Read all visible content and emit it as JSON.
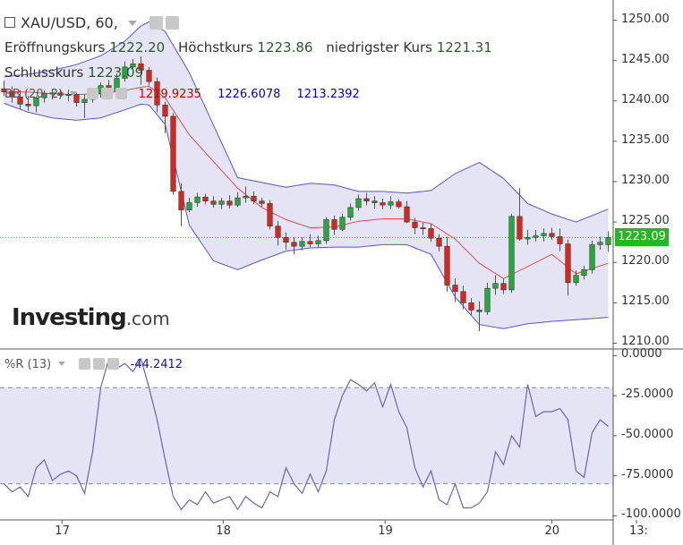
{
  "header": {
    "symbol": "XAU/USD, 60,",
    "open_label": "Eröffnungskurs",
    "open_value": "1222.20",
    "high_label": "Höchstkurs",
    "high_value": "1223.86",
    "low_label": "niedrigster Kurs",
    "low_value": "1221.31",
    "close_label": "Schlusskurs",
    "close_value": "1223.09"
  },
  "bb_legend": {
    "name": "BB (20, 2)",
    "middle": "1219.9235",
    "upper": "1226.6078",
    "lower": "1213.2392"
  },
  "wr_legend": {
    "name": "%R (13)",
    "value": "-44.2412"
  },
  "brand": {
    "name": "Investing",
    "suffix": ".com"
  },
  "price_badge": "1223.09",
  "colors": {
    "up": "#26a83a",
    "down": "#d9261c",
    "bb_band": "#5555dd",
    "bb_mid": "#e05050",
    "bb_fill": "#e4e4f4",
    "wr_line": "#6666bb",
    "price_line": "#25b525",
    "badge": "#25b525"
  },
  "chart_data": [
    {
      "type": "candlestick",
      "title": "XAU/USD, 60,",
      "ylim": [
        1209.5,
        1252.5
      ],
      "yticks": [
        "1250.00",
        "1245.00",
        "1240.00",
        "1235.00",
        "1230.00",
        "1225.00",
        "1220.00",
        "1215.00",
        "1210.00"
      ],
      "ytick_values": [
        1250,
        1245,
        1240,
        1235,
        1230,
        1225,
        1220,
        1215,
        1210
      ],
      "x_range": [
        -0.5,
        75.5
      ],
      "xticks": [
        {
          "label": "17",
          "index": 7.2
        },
        {
          "label": "18",
          "index": 27.2
        },
        {
          "label": "19",
          "index": 47.3
        },
        {
          "label": "20",
          "index": 68.0
        },
        {
          "label": "13:",
          "index": 78.5
        }
      ],
      "last_price": 1223.09,
      "candles": [
        {
          "o": 1241.5,
          "h": 1242.5,
          "l": 1240.6,
          "c": 1241.1
        },
        {
          "o": 1241.1,
          "h": 1241.8,
          "l": 1239.8,
          "c": 1240.5
        },
        {
          "o": 1240.5,
          "h": 1241.3,
          "l": 1239.0,
          "c": 1239.6
        },
        {
          "o": 1239.6,
          "h": 1240.6,
          "l": 1238.8,
          "c": 1239.4
        },
        {
          "o": 1239.4,
          "h": 1240.6,
          "l": 1238.6,
          "c": 1240.4
        },
        {
          "o": 1240.4,
          "h": 1241.3,
          "l": 1239.8,
          "c": 1240.9
        },
        {
          "o": 1240.9,
          "h": 1241.5,
          "l": 1240.2,
          "c": 1241.0
        },
        {
          "o": 1241.0,
          "h": 1241.4,
          "l": 1240.4,
          "c": 1240.7
        },
        {
          "o": 1240.7,
          "h": 1241.4,
          "l": 1240.0,
          "c": 1240.8
        },
        {
          "o": 1240.8,
          "h": 1241.0,
          "l": 1239.3,
          "c": 1239.8
        },
        {
          "o": 1239.8,
          "h": 1240.8,
          "l": 1237.9,
          "c": 1240.2
        },
        {
          "o": 1240.2,
          "h": 1241.5,
          "l": 1239.8,
          "c": 1240.9
        },
        {
          "o": 1240.9,
          "h": 1242.3,
          "l": 1240.4,
          "c": 1241.9
        },
        {
          "o": 1241.9,
          "h": 1242.6,
          "l": 1240.6,
          "c": 1241.2
        },
        {
          "o": 1241.2,
          "h": 1243.4,
          "l": 1240.8,
          "c": 1242.8
        },
        {
          "o": 1242.8,
          "h": 1244.9,
          "l": 1242.4,
          "c": 1244.2
        },
        {
          "o": 1244.2,
          "h": 1245.2,
          "l": 1243.4,
          "c": 1244.6
        },
        {
          "o": 1244.6,
          "h": 1245.5,
          "l": 1242.0,
          "c": 1243.8
        },
        {
          "o": 1243.8,
          "h": 1244.2,
          "l": 1241.9,
          "c": 1242.4
        },
        {
          "o": 1242.4,
          "h": 1242.9,
          "l": 1238.6,
          "c": 1239.5
        },
        {
          "o": 1239.5,
          "h": 1239.9,
          "l": 1236.0,
          "c": 1238.1
        },
        {
          "o": 1238.1,
          "h": 1238.5,
          "l": 1228.4,
          "c": 1228.8
        },
        {
          "o": 1228.8,
          "h": 1229.8,
          "l": 1224.5,
          "c": 1226.5
        },
        {
          "o": 1226.5,
          "h": 1228.0,
          "l": 1226.2,
          "c": 1227.4
        },
        {
          "o": 1227.4,
          "h": 1228.6,
          "l": 1226.9,
          "c": 1228.1
        },
        {
          "o": 1228.1,
          "h": 1228.5,
          "l": 1227.2,
          "c": 1227.6
        },
        {
          "o": 1227.6,
          "h": 1228.2,
          "l": 1226.8,
          "c": 1227.2
        },
        {
          "o": 1227.2,
          "h": 1228.0,
          "l": 1226.6,
          "c": 1227.6
        },
        {
          "o": 1227.6,
          "h": 1228.3,
          "l": 1226.7,
          "c": 1227.1
        },
        {
          "o": 1227.1,
          "h": 1228.7,
          "l": 1226.9,
          "c": 1228.0
        },
        {
          "o": 1228.0,
          "h": 1229.4,
          "l": 1227.4,
          "c": 1228.2
        },
        {
          "o": 1228.2,
          "h": 1228.8,
          "l": 1227.2,
          "c": 1227.6
        },
        {
          "o": 1227.6,
          "h": 1228.0,
          "l": 1226.9,
          "c": 1227.3
        },
        {
          "o": 1227.3,
          "h": 1227.7,
          "l": 1224.1,
          "c": 1224.5
        },
        {
          "o": 1224.5,
          "h": 1225.1,
          "l": 1222.1,
          "c": 1223.1
        },
        {
          "o": 1223.1,
          "h": 1223.7,
          "l": 1221.6,
          "c": 1222.5
        },
        {
          "o": 1222.5,
          "h": 1223.1,
          "l": 1221.0,
          "c": 1222.0
        },
        {
          "o": 1222.0,
          "h": 1223.1,
          "l": 1221.5,
          "c": 1222.6
        },
        {
          "o": 1222.6,
          "h": 1223.5,
          "l": 1221.9,
          "c": 1222.3
        },
        {
          "o": 1222.3,
          "h": 1223.3,
          "l": 1221.9,
          "c": 1222.7
        },
        {
          "o": 1222.7,
          "h": 1225.6,
          "l": 1222.3,
          "c": 1225.3
        },
        {
          "o": 1225.3,
          "h": 1225.8,
          "l": 1223.4,
          "c": 1224.1
        },
        {
          "o": 1224.1,
          "h": 1226.0,
          "l": 1223.9,
          "c": 1225.6
        },
        {
          "o": 1225.6,
          "h": 1227.3,
          "l": 1225.2,
          "c": 1226.8
        },
        {
          "o": 1226.8,
          "h": 1228.4,
          "l": 1226.4,
          "c": 1227.9
        },
        {
          "o": 1227.9,
          "h": 1228.6,
          "l": 1227.1,
          "c": 1227.6
        },
        {
          "o": 1227.6,
          "h": 1228.2,
          "l": 1226.7,
          "c": 1227.4
        },
        {
          "o": 1227.4,
          "h": 1227.9,
          "l": 1226.6,
          "c": 1227.1
        },
        {
          "o": 1227.1,
          "h": 1228.2,
          "l": 1226.6,
          "c": 1227.5
        },
        {
          "o": 1227.5,
          "h": 1227.8,
          "l": 1226.7,
          "c": 1226.9
        },
        {
          "o": 1226.9,
          "h": 1227.6,
          "l": 1224.9,
          "c": 1225.0
        },
        {
          "o": 1225.0,
          "h": 1225.5,
          "l": 1223.5,
          "c": 1224.3
        },
        {
          "o": 1224.3,
          "h": 1224.9,
          "l": 1223.4,
          "c": 1224.2
        },
        {
          "o": 1224.2,
          "h": 1224.8,
          "l": 1222.6,
          "c": 1223.0
        },
        {
          "o": 1223.0,
          "h": 1223.5,
          "l": 1221.4,
          "c": 1222.0
        },
        {
          "o": 1222.0,
          "h": 1223.2,
          "l": 1216.4,
          "c": 1217.2
        },
        {
          "o": 1217.2,
          "h": 1218.0,
          "l": 1215.1,
          "c": 1216.4
        },
        {
          "o": 1216.4,
          "h": 1217.1,
          "l": 1214.2,
          "c": 1215.0
        },
        {
          "o": 1215.0,
          "h": 1215.6,
          "l": 1213.5,
          "c": 1214.1
        },
        {
          "o": 1214.1,
          "h": 1215.2,
          "l": 1211.5,
          "c": 1213.9
        },
        {
          "o": 1213.9,
          "h": 1217.5,
          "l": 1213.5,
          "c": 1216.8
        },
        {
          "o": 1216.8,
          "h": 1218.4,
          "l": 1216.0,
          "c": 1217.4
        },
        {
          "o": 1217.4,
          "h": 1218.0,
          "l": 1216.1,
          "c": 1216.6
        },
        {
          "o": 1216.6,
          "h": 1226.0,
          "l": 1216.2,
          "c": 1225.7
        },
        {
          "o": 1225.7,
          "h": 1229.2,
          "l": 1222.7,
          "c": 1222.9
        },
        {
          "o": 1222.9,
          "h": 1224.0,
          "l": 1222.2,
          "c": 1223.1
        },
        {
          "o": 1223.1,
          "h": 1224.0,
          "l": 1222.6,
          "c": 1223.3
        },
        {
          "o": 1223.3,
          "h": 1224.2,
          "l": 1222.6,
          "c": 1223.6
        },
        {
          "o": 1223.6,
          "h": 1224.3,
          "l": 1222.8,
          "c": 1223.2
        },
        {
          "o": 1223.2,
          "h": 1224.2,
          "l": 1221.4,
          "c": 1222.3
        },
        {
          "o": 1222.3,
          "h": 1222.8,
          "l": 1215.9,
          "c": 1217.5
        },
        {
          "o": 1217.5,
          "h": 1219.0,
          "l": 1217.1,
          "c": 1218.4
        },
        {
          "o": 1218.4,
          "h": 1219.6,
          "l": 1217.9,
          "c": 1219.1
        },
        {
          "o": 1219.1,
          "h": 1222.7,
          "l": 1218.6,
          "c": 1222.2
        },
        {
          "o": 1222.2,
          "h": 1223.2,
          "l": 1221.6,
          "c": 1222.5
        },
        {
          "o": 1222.2,
          "h": 1223.86,
          "l": 1221.31,
          "c": 1223.09
        }
      ],
      "bollinger": {
        "name": "BB (20, 2)",
        "x": [
          0,
          3,
          6,
          9,
          12,
          15,
          17,
          18,
          20,
          23,
          26,
          29,
          32,
          35,
          38,
          41,
          44,
          47,
          50,
          53,
          56,
          59,
          62,
          65,
          68,
          71,
          75
        ],
        "upper": [
          1243.0,
          1243.3,
          1243.8,
          1244.5,
          1245.6,
          1247.4,
          1249.3,
          1249.8,
          1248.6,
          1243.5,
          1237.0,
          1230.5,
          1229.9,
          1229.3,
          1229.8,
          1229.6,
          1228.8,
          1228.8,
          1228.6,
          1228.9,
          1231.0,
          1232.4,
          1230.4,
          1227.3,
          1226.0,
          1225.0,
          1226.6
        ],
        "middle": [
          1241.2,
          1241.1,
          1240.9,
          1240.8,
          1240.9,
          1241.3,
          1241.7,
          1241.8,
          1240.4,
          1235.8,
          1232.5,
          1229.2,
          1226.8,
          1225.3,
          1224.3,
          1224.4,
          1225.1,
          1225.4,
          1225.4,
          1224.8,
          1222.9,
          1219.9,
          1218.0,
          1219.5,
          1221.0,
          1218.6,
          1219.9
        ],
        "lower": [
          1239.7,
          1238.6,
          1237.9,
          1237.6,
          1237.9,
          1238.9,
          1239.6,
          1239.5,
          1237.1,
          1224.6,
          1220.2,
          1219.1,
          1220.3,
          1221.4,
          1221.8,
          1221.9,
          1221.9,
          1222.2,
          1222.2,
          1221.0,
          1215.7,
          1212.3,
          1211.8,
          1212.4,
          1212.7,
          1212.9,
          1213.2
        ]
      },
      "bb_middle_value": 1219.9235,
      "bb_upper_value": 1226.6078,
      "bb_lower_value": 1213.2392
    },
    {
      "type": "line",
      "title": "%R (13)",
      "ylim": [
        -102,
        3
      ],
      "yticks": [
        "0.0000",
        "-25.0000",
        "-50.0000",
        "-75.0000",
        "-100.0000"
      ],
      "ytick_values": [
        0,
        -25,
        -50,
        -75,
        -100
      ],
      "upper_level": -20,
      "lower_level": -80,
      "last_value": -44.2412,
      "values": [
        -80,
        -85,
        -82,
        -88,
        -70,
        -65,
        -78,
        -74,
        -72,
        -75,
        -86,
        -60,
        -20,
        -2,
        -8,
        -5,
        -10,
        -2,
        -20,
        -40,
        -65,
        -88,
        -96,
        -90,
        -93,
        -85,
        -92,
        -90,
        -88,
        -96,
        -88,
        -92,
        -95,
        -85,
        -88,
        -70,
        -80,
        -86,
        -74,
        -85,
        -72,
        -40,
        -25,
        -15,
        -18,
        -22,
        -17,
        -32,
        -18,
        -35,
        -45,
        -70,
        -82,
        -72,
        -90,
        -93,
        -80,
        -95,
        -95,
        -92,
        -85,
        -60,
        -68,
        -50,
        -57,
        -18,
        -38,
        -35,
        -35,
        -33,
        -40,
        -72,
        -76,
        -48,
        -40,
        -44.24
      ]
    }
  ]
}
